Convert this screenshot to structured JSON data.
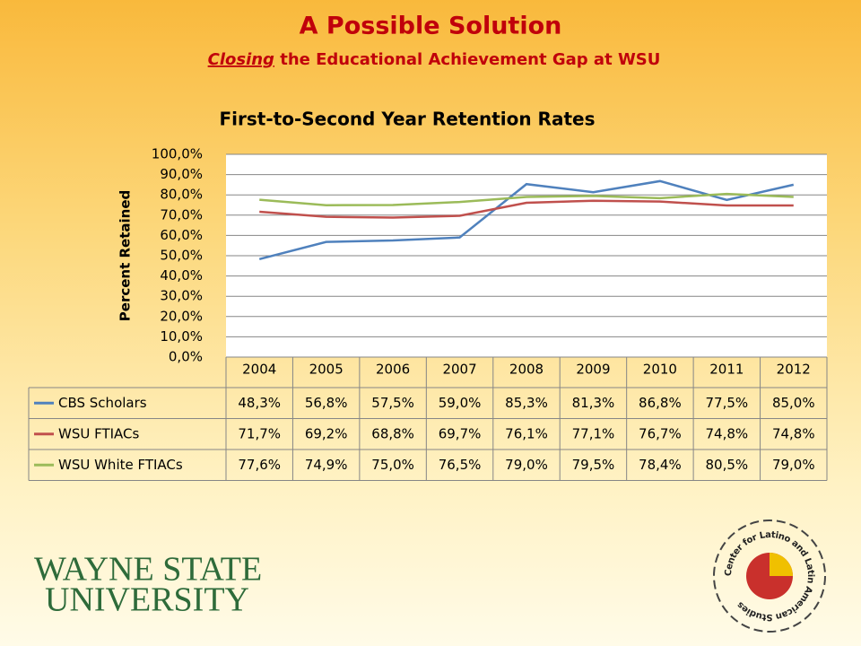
{
  "header": {
    "title": "A Possible Solution",
    "subtitle_emphasis": "Closing",
    "subtitle": "the Educational Achievement Gap at WSU"
  },
  "chart_data": {
    "type": "line",
    "title": "First-to-Second Year Retention Rates",
    "y_label": "Percent Retained",
    "categories": [
      "2004",
      "2005",
      "2006",
      "2007",
      "2008",
      "2009",
      "2010",
      "2011",
      "2012"
    ],
    "series": [
      {
        "name": "CBS Scholars",
        "color": "#4f81bd",
        "values": [
          48.3,
          56.8,
          57.5,
          59.0,
          85.3,
          81.3,
          86.8,
          77.5,
          85.0
        ],
        "value_labels": [
          "48,3%",
          "56,8%",
          "57,5%",
          "59,0%",
          "85,3%",
          "81,3%",
          "86,8%",
          "77,5%",
          "85,0%"
        ]
      },
      {
        "name": "WSU FTIACs",
        "color": "#c0504d",
        "values": [
          71.7,
          69.2,
          68.8,
          69.7,
          76.1,
          77.1,
          76.7,
          74.8,
          74.8
        ],
        "value_labels": [
          "71,7%",
          "69,2%",
          "68,8%",
          "69,7%",
          "76,1%",
          "77,1%",
          "76,7%",
          "74,8%",
          "74,8%"
        ]
      },
      {
        "name": "WSU White FTIACs",
        "color": "#9bbb59",
        "values": [
          77.6,
          74.9,
          75.0,
          76.5,
          79.0,
          79.5,
          78.4,
          80.5,
          79.0
        ],
        "value_labels": [
          "77,6%",
          "74,9%",
          "75,0%",
          "76,5%",
          "79,0%",
          "79,5%",
          "78,4%",
          "80,5%",
          "79,0%"
        ]
      }
    ],
    "ylim": [
      0,
      100
    ],
    "yticks": [
      {
        "value": 0,
        "label": "0,0%"
      },
      {
        "value": 10,
        "label": "10,0%"
      },
      {
        "value": 20,
        "label": "20,0%"
      },
      {
        "value": 30,
        "label": "30,0%"
      },
      {
        "value": 40,
        "label": "40,0%"
      },
      {
        "value": 50,
        "label": "50,0%"
      },
      {
        "value": 60,
        "label": "60,0%"
      },
      {
        "value": 70,
        "label": "70,0%"
      },
      {
        "value": 80,
        "label": "80,0%"
      },
      {
        "value": 90,
        "label": "90,0%"
      },
      {
        "value": 100,
        "label": "100,0%"
      }
    ],
    "grid": true
  },
  "logos": {
    "university_line1": "WAYNE STATE",
    "university_line2": "UNIVERSITY",
    "center": "Center for Latino and Latin American Studies"
  }
}
